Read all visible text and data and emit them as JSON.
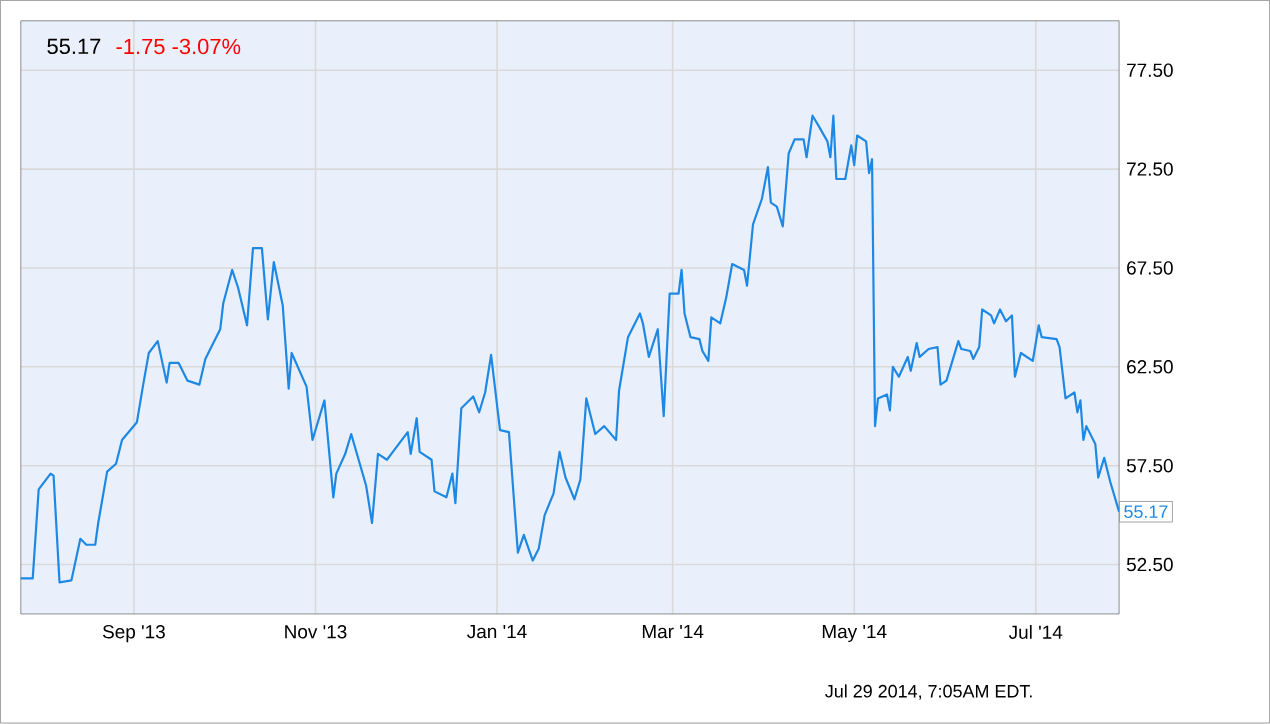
{
  "chart_data": {
    "type": "line",
    "title": "55.17",
    "subtitle": "-1.75 -3.07%",
    "x": [
      "2013-07-25",
      "2013-07-29",
      "2013-07-31",
      "2013-08-04",
      "2013-08-05",
      "2013-08-07",
      "2013-08-11",
      "2013-08-14",
      "2013-08-16",
      "2013-08-19",
      "2013-08-20",
      "2013-08-23",
      "2013-08-26",
      "2013-08-28",
      "2013-09-02",
      "2013-09-04",
      "2013-09-06",
      "2013-09-09",
      "2013-09-12",
      "2013-09-13",
      "2013-09-16",
      "2013-09-19",
      "2013-09-23",
      "2013-09-25",
      "2013-09-27",
      "2013-09-30",
      "2013-10-01",
      "2013-10-04",
      "2013-10-06",
      "2013-10-09",
      "2013-10-11",
      "2013-10-14",
      "2013-10-16",
      "2013-10-18",
      "2013-10-21",
      "2013-10-23",
      "2013-10-24",
      "2013-10-29",
      "2013-10-31",
      "2013-11-04",
      "2013-11-07",
      "2013-11-08",
      "2013-11-11",
      "2013-11-13",
      "2013-11-18",
      "2013-11-20",
      "2013-11-22",
      "2013-11-25",
      "2013-11-27",
      "2013-12-02",
      "2013-12-03",
      "2013-12-05",
      "2013-12-06",
      "2013-12-10",
      "2013-12-11",
      "2013-12-15",
      "2013-12-17",
      "2013-12-18",
      "2013-12-20",
      "2013-12-24",
      "2013-12-26",
      "2013-12-28",
      "2013-12-30",
      "2014-01-02",
      "2014-01-05",
      "2014-01-08",
      "2014-01-10",
      "2014-01-13",
      "2014-01-15",
      "2014-01-17",
      "2014-01-20",
      "2014-01-22",
      "2014-01-24",
      "2014-01-27",
      "2014-01-29",
      "2014-01-31",
      "2014-02-03",
      "2014-02-06",
      "2014-02-10",
      "2014-02-11",
      "2014-02-14",
      "2014-02-18",
      "2014-02-19",
      "2014-02-21",
      "2014-02-24",
      "2014-02-26",
      "2014-02-28",
      "2014-03-03",
      "2014-03-04",
      "2014-03-05",
      "2014-03-07",
      "2014-03-10",
      "2014-03-11",
      "2014-03-13",
      "2014-03-14",
      "2014-03-17",
      "2014-03-19",
      "2014-03-21",
      "2014-03-25",
      "2014-03-26",
      "2014-03-28",
      "2014-03-31",
      "2014-04-02",
      "2014-04-03",
      "2014-04-05",
      "2014-04-07",
      "2014-04-09",
      "2014-04-11",
      "2014-04-14",
      "2014-04-15",
      "2014-04-17",
      "2014-04-19",
      "2014-04-22",
      "2014-04-23",
      "2014-04-24",
      "2014-04-25",
      "2014-04-28",
      "2014-04-30",
      "2014-05-01",
      "2014-05-02",
      "2014-05-05",
      "2014-05-06",
      "2014-05-07",
      "2014-05-08",
      "2014-05-09",
      "2014-05-12",
      "2014-05-13",
      "2014-05-14",
      "2014-05-16",
      "2014-05-19",
      "2014-05-20",
      "2014-05-22",
      "2014-05-23",
      "2014-05-26",
      "2014-05-29",
      "2014-05-30",
      "2014-06-01",
      "2014-06-05",
      "2014-06-06",
      "2014-06-09",
      "2014-06-10",
      "2014-06-12",
      "2014-06-13",
      "2014-06-16",
      "2014-06-17",
      "2014-06-19",
      "2014-06-21",
      "2014-06-23",
      "2014-06-24",
      "2014-06-26",
      "2014-06-30",
      "2014-07-02",
      "2014-07-03",
      "2014-07-08",
      "2014-07-09",
      "2014-07-11",
      "2014-07-14",
      "2014-07-15",
      "2014-07-16",
      "2014-07-17",
      "2014-07-18",
      "2014-07-21",
      "2014-07-22",
      "2014-07-24",
      "2014-07-26",
      "2014-07-29"
    ],
    "series": [
      {
        "color": "#1e88e5",
        "values": [
          51.8,
          51.8,
          56.3,
          57.1,
          57.0,
          51.6,
          51.7,
          53.8,
          53.5,
          53.5,
          54.6,
          57.2,
          57.6,
          58.8,
          59.7,
          61.5,
          63.2,
          63.8,
          61.7,
          62.7,
          62.7,
          61.8,
          61.6,
          62.9,
          63.5,
          64.4,
          65.7,
          67.4,
          66.5,
          64.6,
          68.5,
          68.5,
          64.9,
          67.8,
          65.6,
          61.4,
          63.2,
          61.5,
          58.8,
          60.8,
          55.9,
          57.1,
          58.1,
          59.1,
          56.5,
          54.6,
          58.1,
          57.8,
          58.2,
          59.2,
          58.1,
          59.9,
          58.2,
          57.8,
          56.2,
          55.9,
          57.1,
          55.6,
          60.4,
          61.0,
          60.2,
          61.2,
          63.1,
          59.3,
          59.2,
          53.1,
          54.0,
          52.7,
          53.3,
          55.0,
          56.1,
          58.2,
          56.9,
          55.8,
          56.8,
          60.9,
          59.1,
          59.5,
          58.8,
          61.3,
          64.0,
          65.2,
          64.7,
          63.0,
          64.4,
          60.0,
          66.2,
          66.2,
          67.4,
          65.2,
          64.0,
          63.9,
          63.3,
          62.8,
          65.0,
          64.7,
          66.0,
          67.7,
          67.4,
          66.6,
          69.7,
          71.0,
          72.6,
          70.8,
          70.6,
          69.6,
          73.3,
          74.0,
          74.0,
          73.1,
          75.2,
          74.7,
          73.9,
          73.1,
          75.2,
          72.0,
          72.0,
          73.7,
          72.7,
          74.2,
          73.9,
          72.3,
          73.0,
          59.5,
          60.9,
          61.1,
          60.3,
          62.5,
          62.0,
          63.0,
          62.3,
          63.7,
          63.0,
          63.4,
          63.5,
          61.6,
          61.8,
          63.8,
          63.4,
          63.3,
          62.9,
          63.5,
          65.4,
          65.1,
          64.7,
          65.4,
          64.8,
          65.1,
          62.0,
          63.2,
          62.8,
          64.6,
          64.0,
          63.9,
          63.5,
          60.9,
          61.2,
          60.2,
          60.8,
          58.8,
          59.5,
          58.6,
          56.9,
          57.9,
          56.7,
          55.17
        ]
      }
    ],
    "xlim": [
      "2013-07-25",
      "2014-07-29"
    ],
    "xticks": [
      {
        "value": "2013-09-01",
        "label": "Sep '13"
      },
      {
        "value": "2013-11-01",
        "label": "Nov '13"
      },
      {
        "value": "2014-01-01",
        "label": "Jan '14"
      },
      {
        "value": "2014-03-01",
        "label": "Mar '14"
      },
      {
        "value": "2014-05-01",
        "label": "May '14"
      },
      {
        "value": "2014-07-01",
        "label": "Jul '14"
      }
    ],
    "ylim": [
      50,
      80
    ],
    "yticks": [
      {
        "value": 52.5,
        "label": "52.50"
      },
      {
        "value": 57.5,
        "label": "57.50"
      },
      {
        "value": 62.5,
        "label": "62.50"
      },
      {
        "value": 67.5,
        "label": "67.50"
      },
      {
        "value": 72.5,
        "label": "72.50"
      },
      {
        "value": 77.5,
        "label": "77.50"
      }
    ],
    "grid": true,
    "annotations": [
      "Jul 29 2014, 7:05AM EDT.",
      {
        "text": "55.17",
        "x": "2014-07-29",
        "y": 55.17
      }
    ]
  }
}
